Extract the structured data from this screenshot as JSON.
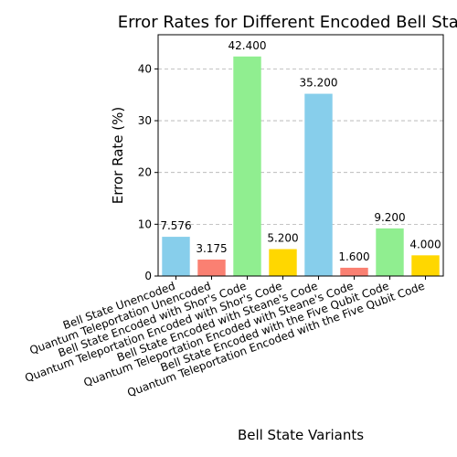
{
  "chart_data": {
    "type": "bar",
    "title": "Error Rates for Different Encoded Bell States",
    "xlabel": "Bell State Variants",
    "ylabel": "Error Rate (%)",
    "ylim": [
      0,
      46.6
    ],
    "yticks": [
      0,
      10,
      20,
      30,
      40
    ],
    "grid": "y-dashed",
    "categories": [
      "Bell State Unencoded",
      "Quantum Teleportation Unencoded",
      "Bell State Encoded with Shor's Code",
      "Quantum Teleportation Encoded with Shor's Code",
      "Bell State Encoded with Steane's Code",
      "Quantum Teleportation Encoded with Steane's Code",
      "Bell State Encoded with the Five Qubit Code",
      "Quantum Teleportation Encoded with the Five Qubit Code"
    ],
    "values": [
      7.576,
      3.175,
      42.4,
      5.2,
      35.2,
      1.6,
      9.2,
      4.0
    ],
    "value_labels": [
      "7.576",
      "3.175",
      "42.400",
      "5.200",
      "35.200",
      "1.600",
      "9.200",
      "4.000"
    ],
    "colors": [
      "#87CEEB",
      "#FA8072",
      "#90EE90",
      "#FFD700",
      "#87CEEB",
      "#FA8072",
      "#90EE90",
      "#FFD700"
    ]
  }
}
